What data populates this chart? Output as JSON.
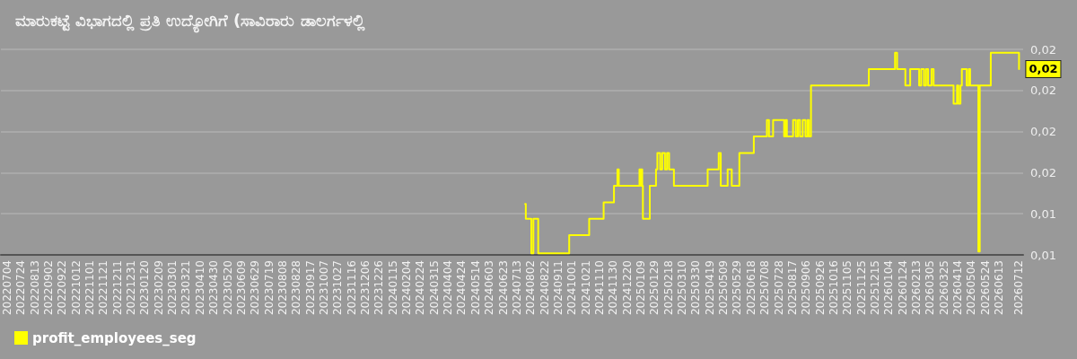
{
  "chart_data": {
    "type": "step",
    "title": "ಮಾರುಕಟ್ಟೆ ವಿಭಾಗದಲ್ಲಿ ಪ್ರತಿ ಉದ್ಯೋಗಿಗೆ (ಸಾವಿರಾರು ಡಾಲರ್ಗಳಲ್ಲಿ",
    "x": [
      "2024-07-25",
      "2024-07-26",
      "2024-08-03",
      "2024-08-06",
      "2024-08-13",
      "2024-09-27",
      "2024-10-26",
      "2024-11-16",
      "2024-12-01",
      "2024-12-06",
      "2024-12-08",
      "2025-01-07",
      "2025-01-09",
      "2025-01-10",
      "2025-01-11",
      "2025-01-12",
      "2025-01-22",
      "2025-01-31",
      "2025-02-02",
      "2025-02-06",
      "2025-02-09",
      "2025-02-13",
      "2025-02-16",
      "2025-02-19",
      "2025-02-26",
      "2025-04-16",
      "2025-05-02",
      "2025-05-05",
      "2025-05-15",
      "2025-05-21",
      "2025-06-01",
      "2025-06-22",
      "2025-07-11",
      "2025-07-14",
      "2025-07-20",
      "2025-08-05",
      "2025-08-07",
      "2025-08-09",
      "2025-08-18",
      "2025-08-22",
      "2025-08-25",
      "2025-08-28",
      "2025-09-01",
      "2025-09-05",
      "2025-09-08",
      "2025-09-10",
      "2025-09-13",
      "2025-12-06",
      "2026-01-13",
      "2026-01-16",
      "2026-01-28",
      "2026-02-04",
      "2026-02-17",
      "2026-02-20",
      "2026-02-24",
      "2026-02-27",
      "2026-03-02",
      "2026-03-07",
      "2026-03-10",
      "2026-04-08",
      "2026-04-13",
      "2026-04-15",
      "2026-04-18",
      "2026-04-20",
      "2026-04-27",
      "2026-04-30",
      "2026-05-02",
      "2026-05-14",
      "2026-05-16",
      "2026-06-01",
      "2026-07-11",
      "2026-07-12"
    ],
    "series": [
      {
        "name": "profit_employees_seg",
        "color": "#ffff00",
        "values": [
          0.0131,
          0.0122,
          0.0101,
          0.0122,
          0.0101,
          0.0112,
          0.0122,
          0.0132,
          0.0142,
          0.0152,
          0.0142,
          0.0152,
          0.0142,
          0.0152,
          0.0142,
          0.0122,
          0.0142,
          0.0152,
          0.0162,
          0.0152,
          0.0162,
          0.0152,
          0.0162,
          0.0152,
          0.0142,
          0.0152,
          0.0162,
          0.0142,
          0.0152,
          0.0142,
          0.0162,
          0.0172,
          0.0182,
          0.0172,
          0.0182,
          0.0172,
          0.0182,
          0.0172,
          0.0182,
          0.0172,
          0.0182,
          0.0172,
          0.0182,
          0.0172,
          0.0182,
          0.0172,
          0.0203,
          0.0213,
          0.0223,
          0.0213,
          0.0203,
          0.0213,
          0.0203,
          0.0213,
          0.0203,
          0.0213,
          0.0203,
          0.0213,
          0.0203,
          0.0192,
          0.0203,
          0.0192,
          0.0203,
          0.0213,
          0.0203,
          0.0213,
          0.0203,
          0.0102,
          0.0203,
          0.0223,
          0.0223,
          0.0213
        ]
      }
    ],
    "xlim": [
      "2022-06-25",
      "2026-07-18"
    ],
    "xticks": [
      {
        "value": "2022-07-04",
        "label": "20220704"
      },
      {
        "value": "2022-07-24",
        "label": "20220724"
      },
      {
        "value": "2022-08-13",
        "label": "20220813"
      },
      {
        "value": "2022-09-02",
        "label": "20220902"
      },
      {
        "value": "2022-09-22",
        "label": "20220922"
      },
      {
        "value": "2022-10-12",
        "label": "20221012"
      },
      {
        "value": "2022-11-01",
        "label": "20221101"
      },
      {
        "value": "2022-11-21",
        "label": "20221121"
      },
      {
        "value": "2022-12-11",
        "label": "20221211"
      },
      {
        "value": "2022-12-31",
        "label": "20221231"
      },
      {
        "value": "2023-01-20",
        "label": "20230120"
      },
      {
        "value": "2023-02-09",
        "label": "20230209"
      },
      {
        "value": "2023-03-01",
        "label": "20230301"
      },
      {
        "value": "2023-03-21",
        "label": "20230321"
      },
      {
        "value": "2023-04-10",
        "label": "20230410"
      },
      {
        "value": "2023-04-30",
        "label": "20230430"
      },
      {
        "value": "2023-05-20",
        "label": "20230520"
      },
      {
        "value": "2023-06-09",
        "label": "20230609"
      },
      {
        "value": "2023-06-29",
        "label": "20230629"
      },
      {
        "value": "2023-07-19",
        "label": "20230719"
      },
      {
        "value": "2023-08-08",
        "label": "20230808"
      },
      {
        "value": "2023-08-28",
        "label": "20230828"
      },
      {
        "value": "2023-09-17",
        "label": "20230917"
      },
      {
        "value": "2023-10-07",
        "label": "20231007"
      },
      {
        "value": "2023-10-27",
        "label": "20231027"
      },
      {
        "value": "2023-11-16",
        "label": "20231116"
      },
      {
        "value": "2023-12-06",
        "label": "20231206"
      },
      {
        "value": "2023-12-26",
        "label": "20231226"
      },
      {
        "value": "2024-01-15",
        "label": "20240115"
      },
      {
        "value": "2024-02-04",
        "label": "20240204"
      },
      {
        "value": "2024-02-24",
        "label": "20240224"
      },
      {
        "value": "2024-03-15",
        "label": "20240315"
      },
      {
        "value": "2024-04-04",
        "label": "20240404"
      },
      {
        "value": "2024-04-24",
        "label": "20240424"
      },
      {
        "value": "2024-05-14",
        "label": "20240514"
      },
      {
        "value": "2024-06-03",
        "label": "20240603"
      },
      {
        "value": "2024-06-23",
        "label": "20240623"
      },
      {
        "value": "2024-07-13",
        "label": "20240713"
      },
      {
        "value": "2024-08-02",
        "label": "20240802"
      },
      {
        "value": "2024-08-22",
        "label": "20240822"
      },
      {
        "value": "2024-09-11",
        "label": "20240911"
      },
      {
        "value": "2024-10-01",
        "label": "20241001"
      },
      {
        "value": "2024-10-21",
        "label": "20241021"
      },
      {
        "value": "2024-11-10",
        "label": "20241110"
      },
      {
        "value": "2024-11-30",
        "label": "20241130"
      },
      {
        "value": "2024-12-20",
        "label": "20241220"
      },
      {
        "value": "2025-01-09",
        "label": "20250109"
      },
      {
        "value": "2025-01-29",
        "label": "20250129"
      },
      {
        "value": "2025-02-18",
        "label": "20250218"
      },
      {
        "value": "2025-03-10",
        "label": "20250310"
      },
      {
        "value": "2025-03-30",
        "label": "20250330"
      },
      {
        "value": "2025-04-19",
        "label": "20250419"
      },
      {
        "value": "2025-05-09",
        "label": "20250509"
      },
      {
        "value": "2025-05-29",
        "label": "20250529"
      },
      {
        "value": "2025-06-18",
        "label": "20250618"
      },
      {
        "value": "2025-07-08",
        "label": "20250708"
      },
      {
        "value": "2025-07-28",
        "label": "20250728"
      },
      {
        "value": "2025-08-17",
        "label": "20250817"
      },
      {
        "value": "2025-09-06",
        "label": "20250906"
      },
      {
        "value": "2025-09-26",
        "label": "20250926"
      },
      {
        "value": "2025-10-16",
        "label": "20251016"
      },
      {
        "value": "2025-11-05",
        "label": "20251105"
      },
      {
        "value": "2025-11-25",
        "label": "20251125"
      },
      {
        "value": "2025-12-15",
        "label": "20251215"
      },
      {
        "value": "2026-01-04",
        "label": "20260104"
      },
      {
        "value": "2026-01-24",
        "label": "20260124"
      },
      {
        "value": "2026-02-13",
        "label": "20260213"
      },
      {
        "value": "2026-03-05",
        "label": "20260305"
      },
      {
        "value": "2026-03-25",
        "label": "20260325"
      },
      {
        "value": "2026-04-14",
        "label": "20260414"
      },
      {
        "value": "2026-05-04",
        "label": "20260504"
      },
      {
        "value": "2026-05-24",
        "label": "20260524"
      },
      {
        "value": "2026-06-13",
        "label": "20260613"
      },
      {
        "value": "2026-07-12",
        "label": "20260712"
      }
    ],
    "ylim": [
      0.01,
      0.0225
    ],
    "yticks": [
      {
        "value": 0.01,
        "label": "0,01"
      },
      {
        "value": 0.0125,
        "label": "0,01"
      },
      {
        "value": 0.015,
        "label": "0,02"
      },
      {
        "value": 0.0175,
        "label": "0,02"
      },
      {
        "value": 0.02,
        "label": "0,02"
      },
      {
        "value": 0.0225,
        "label": "0,02"
      }
    ],
    "grid": "y",
    "legend": "bottom left",
    "marker": "none",
    "line_style": "solid",
    "annotations": [
      {
        "text": "0,02",
        "x": "2026-07-12",
        "y": 0.0213
      }
    ]
  }
}
